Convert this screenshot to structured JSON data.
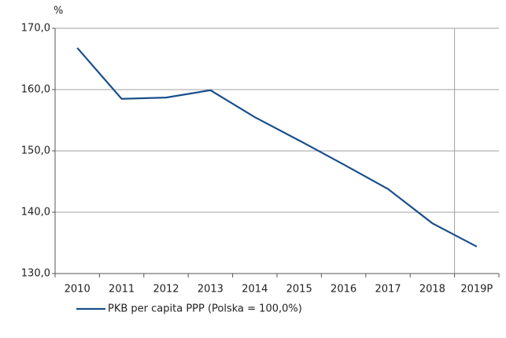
{
  "chart_data": {
    "type": "line",
    "unit": "%",
    "categories": [
      "2010",
      "2011",
      "2012",
      "2013",
      "2014",
      "2015",
      "2016",
      "2017",
      "2018",
      "2019P"
    ],
    "series": [
      {
        "name": "PKB per capita PPP (Polska = 100,0%)",
        "color": "#1a4f8b",
        "values": [
          166.8,
          158.5,
          158.7,
          159.9,
          155.5,
          151.7,
          147.8,
          143.8,
          138.2,
          134.4
        ]
      }
    ],
    "ylim": [
      130,
      170
    ],
    "yticks": [
      {
        "value": 130,
        "label": "130,0"
      },
      {
        "value": 140,
        "label": "140,0"
      },
      {
        "value": 150,
        "label": "150,0"
      },
      {
        "value": 160,
        "label": "160,0"
      },
      {
        "value": 170,
        "label": "170,0"
      }
    ],
    "grid": true
  }
}
